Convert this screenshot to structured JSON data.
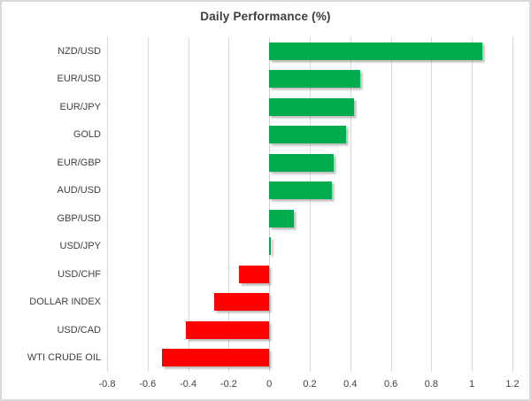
{
  "chart_data": {
    "type": "bar",
    "orientation": "horizontal",
    "title": "Daily Performance (%)",
    "categories": [
      "NZD/USD",
      "EUR/USD",
      "EUR/JPY",
      "GOLD",
      "EUR/GBP",
      "AUD/USD",
      "GBP/USD",
      "USD/JPY",
      "USD/CHF",
      "DOLLAR INDEX",
      "USD/CAD",
      "WTI CRUDE OIL"
    ],
    "values": [
      1.05,
      0.45,
      0.42,
      0.38,
      0.32,
      0.31,
      0.12,
      0.01,
      -0.15,
      -0.27,
      -0.41,
      -0.53
    ],
    "xlabel": "",
    "ylabel": "",
    "xlim": [
      -0.8,
      1.2
    ],
    "xticks": [
      -0.8,
      -0.6,
      -0.4,
      -0.2,
      0,
      0.2,
      0.4,
      0.6,
      0.8,
      1,
      1.2
    ],
    "xtick_labels": [
      "-0.8",
      "-0.6",
      "-0.4",
      "-0.2",
      "0",
      "0.2",
      "0.4",
      "0.6",
      "0.8",
      "1",
      "1.2"
    ],
    "grid": true,
    "legend": false,
    "positive_color": "#00AC4E",
    "negative_color": "#FF0000",
    "grid_color": "#D9D9D9",
    "text_color": "#404040",
    "frame_color": "#D9D9D9"
  }
}
